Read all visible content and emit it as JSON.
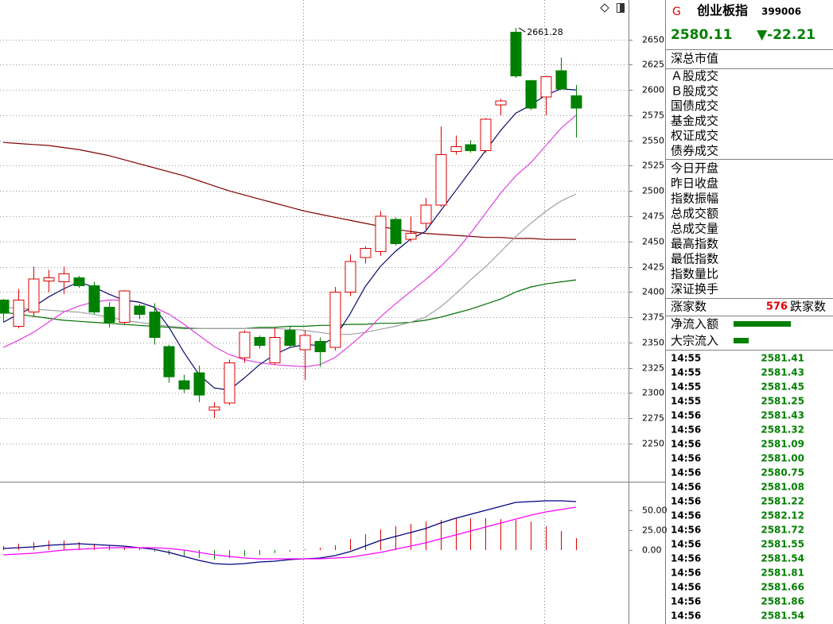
{
  "chart_data": [
    {
      "type": "candlestick",
      "open": [
        2392,
        2366,
        2380,
        2411,
        2410,
        2414,
        2406,
        2385,
        2370,
        2386,
        2380,
        2346,
        2312,
        2320,
        2283,
        2290,
        2335,
        2355,
        2330,
        2362,
        2343,
        2351,
        2345,
        2400,
        2434,
        2440,
        2472,
        2452,
        2468,
        2486,
        2539,
        2546,
        2540,
        2585,
        2657,
        2609,
        2593,
        2619,
        2594
      ],
      "high": [
        2393,
        2403,
        2425,
        2422,
        2425,
        2416,
        2410,
        2390,
        2402,
        2388,
        2389,
        2348,
        2318,
        2327,
        2291,
        2333,
        2362,
        2357,
        2365,
        2366,
        2362,
        2355,
        2405,
        2437,
        2445,
        2480,
        2474,
        2475,
        2493,
        2564,
        2555,
        2550,
        2572,
        2591,
        2661.28,
        2610,
        2614,
        2632,
        2605
      ],
      "low": [
        2370,
        2364,
        2375,
        2400,
        2398,
        2404,
        2378,
        2365,
        2368,
        2373,
        2348,
        2310,
        2300,
        2291,
        2275,
        2288,
        2330,
        2344,
        2328,
        2345,
        2313,
        2326,
        2342,
        2396,
        2428,
        2436,
        2446,
        2450,
        2462,
        2484,
        2536,
        2538,
        2538,
        2575,
        2612,
        2580,
        2575,
        2600,
        2553
      ],
      "close": [
        2379,
        2392,
        2413,
        2414,
        2418,
        2406,
        2380,
        2370,
        2401,
        2378,
        2355,
        2316,
        2304,
        2298,
        2286,
        2330,
        2360,
        2347,
        2355,
        2347,
        2357,
        2341,
        2400,
        2430,
        2443,
        2475,
        2448,
        2458,
        2486,
        2536,
        2544,
        2540,
        2571,
        2589,
        2614,
        2582,
        2613,
        2601,
        2582
      ],
      "up_color": "#e00000",
      "down_color": "#008000",
      "lines": [
        {
          "color": "#800000",
          "values": [
            2548,
            2547,
            2546,
            2545,
            2543,
            2541,
            2538,
            2535,
            2531,
            2527,
            2523,
            2519,
            2515,
            2510,
            2505,
            2500,
            2496,
            2492,
            2488,
            2484,
            2480,
            2477,
            2474,
            2471,
            2468,
            2465,
            2462,
            2460,
            2458,
            2457,
            2456,
            2455,
            2454,
            2454,
            2453,
            2453,
            2452,
            2452,
            2452
          ]
        },
        {
          "color": "#007000",
          "values": [
            2380,
            2378,
            2376,
            2374,
            2372,
            2371,
            2370,
            2369,
            2368,
            2367,
            2366,
            2365,
            2364,
            2364,
            2364,
            2364,
            2364,
            2365,
            2365,
            2366,
            2366,
            2367,
            2367,
            2368,
            2368,
            2369,
            2369,
            2370,
            2372,
            2375,
            2379,
            2383,
            2388,
            2393,
            2400,
            2405,
            2408,
            2410,
            2412
          ]
        },
        {
          "color": "#a0a0a0",
          "values": [
            2385,
            2384,
            2383,
            2382,
            2381,
            2380,
            2378,
            2375,
            2372,
            2370,
            2368,
            2366,
            2365,
            2364,
            2364,
            2364,
            2364,
            2364,
            2364,
            2363,
            2362,
            2360,
            2358,
            2358,
            2360,
            2363,
            2366,
            2370,
            2375,
            2385,
            2398,
            2412,
            2425,
            2440,
            2455,
            2468,
            2480,
            2490,
            2497
          ]
        },
        {
          "color": "#e040e0",
          "values": [
            2345,
            2352,
            2360,
            2370,
            2380,
            2386,
            2390,
            2392,
            2392,
            2390,
            2385,
            2378,
            2368,
            2357,
            2346,
            2338,
            2333,
            2330,
            2328,
            2327,
            2326,
            2328,
            2335,
            2347,
            2360,
            2375,
            2388,
            2400,
            2412,
            2425,
            2440,
            2458,
            2478,
            2498,
            2515,
            2528,
            2545,
            2562,
            2575
          ]
        },
        {
          "color": "#0a0a6e",
          "values": [
            2370,
            2378,
            2385,
            2395,
            2403,
            2410,
            2405,
            2398,
            2392,
            2390,
            2385,
            2365,
            2340,
            2318,
            2305,
            2303,
            2315,
            2328,
            2338,
            2345,
            2348,
            2347,
            2355,
            2378,
            2405,
            2425,
            2440,
            2452,
            2460,
            2480,
            2500,
            2520,
            2540,
            2560,
            2577,
            2585,
            2595,
            2601,
            2600
          ]
        }
      ],
      "ylim": [
        2213,
        2689
      ],
      "yticks": [
        2250,
        2275,
        2300,
        2325,
        2350,
        2375,
        2400,
        2425,
        2450,
        2475,
        2500,
        2525,
        2550,
        2575,
        2600,
        2625,
        2650
      ],
      "grid": true
    },
    {
      "type": "macd",
      "lines": [
        {
          "color": "#000080",
          "values": [
            2,
            3,
            4,
            6,
            7,
            8,
            7,
            6,
            5,
            3,
            1,
            -3,
            -8,
            -13,
            -17,
            -18,
            -17,
            -15,
            -14,
            -12,
            -11,
            -10,
            -7,
            -2,
            5,
            12,
            17,
            22,
            27,
            34,
            40,
            45,
            50,
            55,
            60,
            61,
            62,
            62,
            61
          ]
        },
        {
          "color": "#ff00ff",
          "values": [
            -6,
            -5,
            -4,
            -2,
            0,
            1,
            2,
            3,
            3,
            3,
            3,
            2,
            0,
            -3,
            -6,
            -8,
            -10,
            -11,
            -11,
            -11,
            -11,
            -11,
            -10,
            -9,
            -6,
            -3,
            1,
            5,
            9,
            14,
            19,
            24,
            29,
            34,
            39,
            44,
            48,
            51,
            54
          ]
        }
      ],
      "bars": {
        "up_color": "#e00000",
        "down_color": "#008000",
        "values": [
          5,
          8,
          10,
          12,
          12,
          10,
          8,
          6,
          4,
          2,
          -2,
          -6,
          -8,
          -10,
          -12,
          -10,
          -8,
          -6,
          -4,
          -2,
          1,
          3,
          6,
          14,
          20,
          26,
          30,
          33,
          36,
          38,
          40,
          40,
          40,
          39,
          38,
          36,
          30,
          24,
          15
        ]
      },
      "ylim": [
        -93,
        85
      ],
      "yticks": [
        {
          "value": 0,
          "label": "0.00"
        },
        {
          "value": 25,
          "label": "25.00"
        },
        {
          "value": 50,
          "label": "50.00"
        }
      ]
    }
  ],
  "quote": {
    "marker": "G",
    "name": "创业板指",
    "code": "399006",
    "price": "2580.11",
    "change": "▼-22.21"
  },
  "fields": {
    "market_value": "深总市值",
    "turnover": [
      "Ａ股成交",
      "Ｂ股成交",
      "国债成交",
      "基金成交",
      "权证成交",
      "债券成交"
    ],
    "index_stats": [
      "今日开盘",
      "昨日收盘",
      "指数振幅",
      "总成交额",
      "总成交量",
      "最高指数",
      "最低指数",
      "指数量比",
      "深证换手"
    ]
  },
  "breadth": {
    "up_label": "涨家数",
    "up_count": "576",
    "down_label": "跌家数"
  },
  "flows": [
    "净流入额",
    "大宗流入"
  ],
  "ticks": [
    [
      "14:55",
      "2581.41"
    ],
    [
      "14:55",
      "2581.43"
    ],
    [
      "14:55",
      "2581.45"
    ],
    [
      "14:55",
      "2581.25"
    ],
    [
      "14:56",
      "2581.43"
    ],
    [
      "14:56",
      "2581.32"
    ],
    [
      "14:56",
      "2581.09"
    ],
    [
      "14:56",
      "2581.00"
    ],
    [
      "14:56",
      "2580.75"
    ],
    [
      "14:56",
      "2581.08"
    ],
    [
      "14:56",
      "2581.22"
    ],
    [
      "14:56",
      "2582.12"
    ],
    [
      "14:56",
      "2581.72"
    ],
    [
      "14:56",
      "2581.55"
    ],
    [
      "14:56",
      "2581.54"
    ],
    [
      "14:56",
      "2581.81"
    ],
    [
      "14:56",
      "2581.66"
    ],
    [
      "14:56",
      "2581.86"
    ],
    [
      "14:56",
      "2581.54"
    ]
  ]
}
